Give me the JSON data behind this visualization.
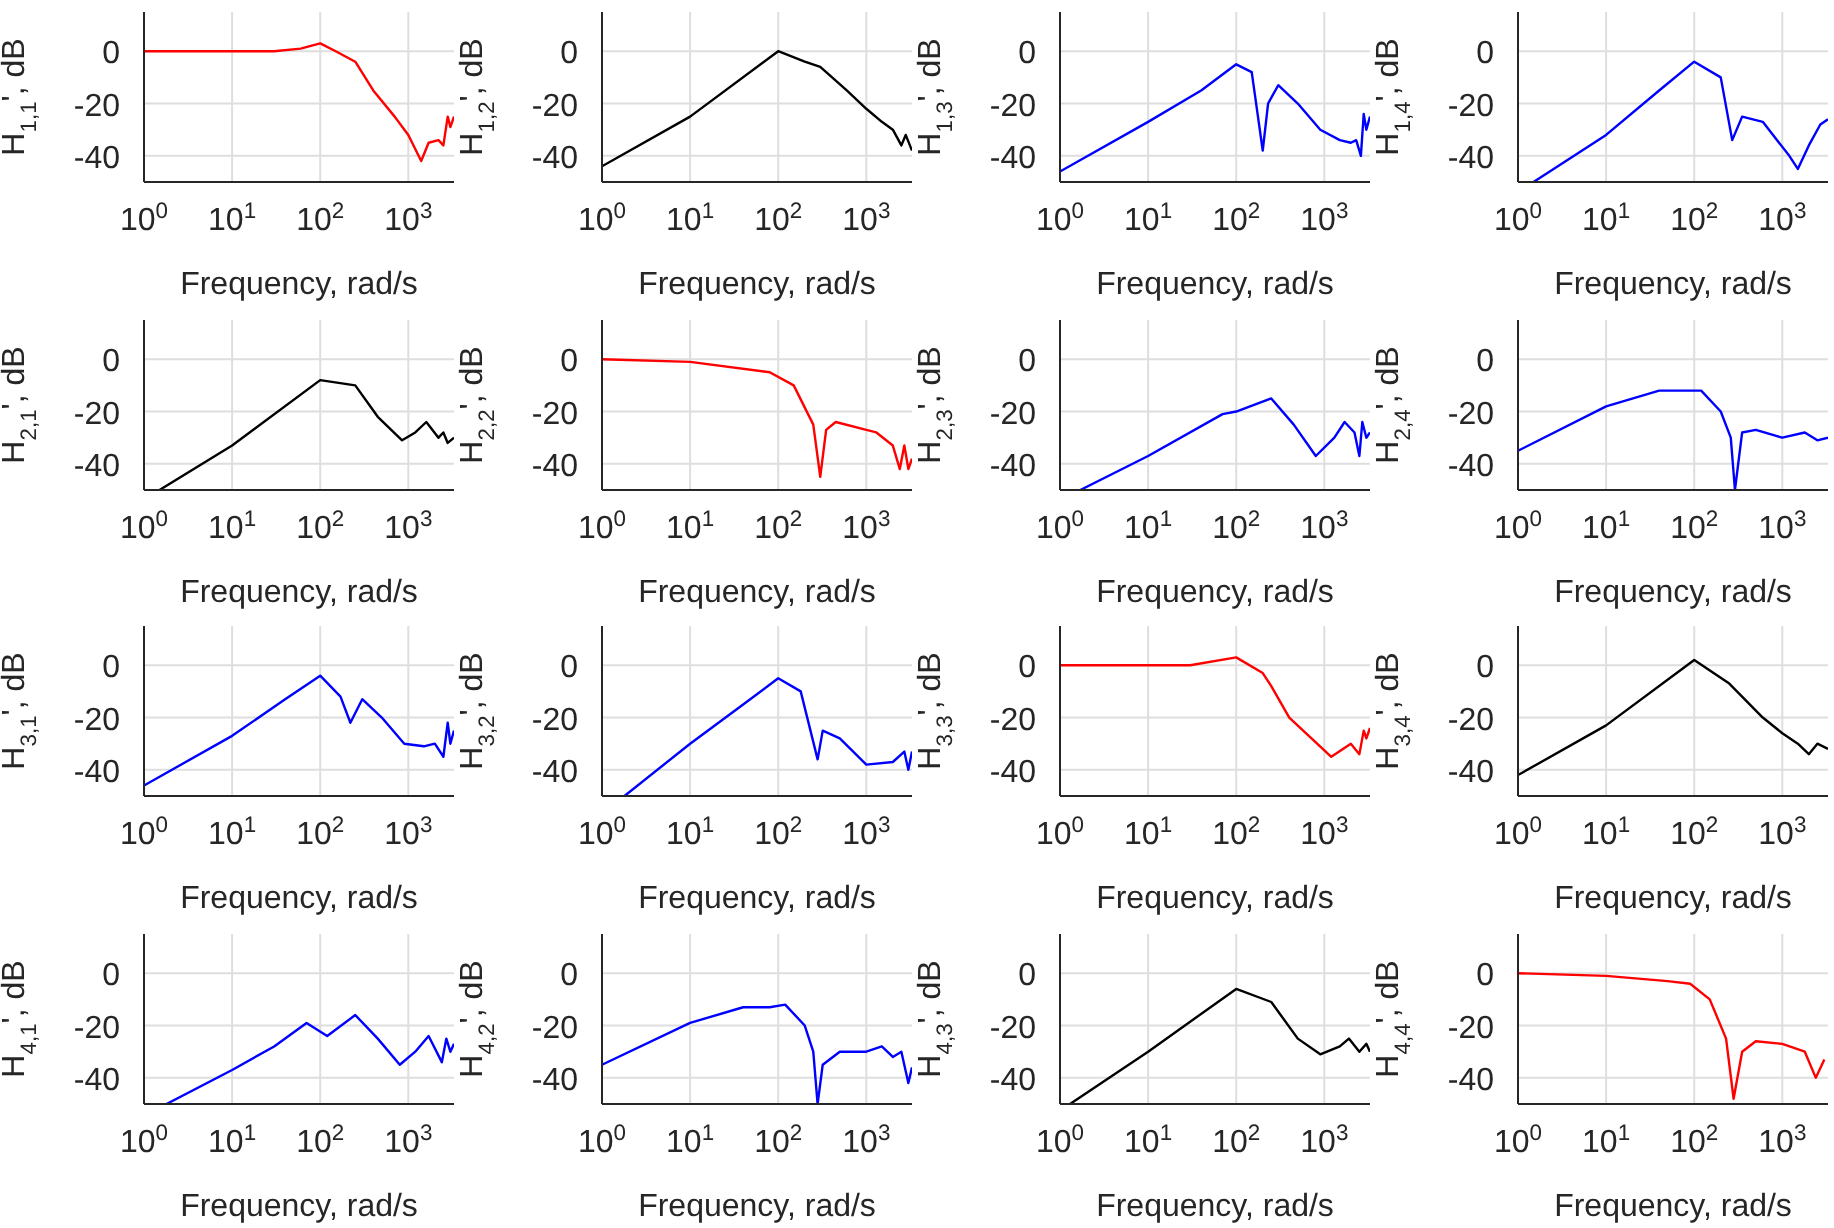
{
  "chart_data": [
    {
      "type": "line",
      "xlabel": "Frequency, rad/s",
      "ylabel": "H$_{1,1}$', dB",
      "log": "x",
      "grid": true,
      "color": "#ff0000",
      "xlim": [
        1,
        3300
      ],
      "ylim": [
        -50,
        15
      ],
      "xticks": [
        {
          "value": 1,
          "label": "10$^{0}$"
        },
        {
          "value": 10,
          "label": "10$^{1}$"
        },
        {
          "value": 100,
          "label": "10$^{2}$"
        },
        {
          "value": 1000,
          "label": "10$^{3}$"
        }
      ],
      "yticks": [
        -40,
        -20,
        0
      ],
      "x": [
        1,
        10,
        30,
        60,
        100,
        150,
        250,
        400,
        700,
        1000,
        1400,
        1700,
        2200,
        2500,
        2800,
        3000,
        3300
      ],
      "values": [
        0,
        0,
        0,
        1,
        3,
        0,
        -4,
        -15,
        -25,
        -32,
        -42,
        -35,
        -34,
        -36,
        -25,
        -29,
        -25
      ]
    },
    {
      "type": "line",
      "xlabel": "Frequency, rad/s",
      "ylabel": "H$_{1,2}$', dB",
      "log": "x",
      "grid": true,
      "color": "#000000",
      "xlim": [
        1,
        3300
      ],
      "ylim": [
        -50,
        15
      ],
      "xticks": [
        {
          "value": 1,
          "label": "10$^{0}$"
        },
        {
          "value": 10,
          "label": "10$^{1}$"
        },
        {
          "value": 100,
          "label": "10$^{2}$"
        },
        {
          "value": 1000,
          "label": "10$^{3}$"
        }
      ],
      "yticks": [
        -40,
        -20,
        0
      ],
      "x": [
        1,
        10,
        100,
        200,
        300,
        600,
        1000,
        1500,
        2000,
        2500,
        2800,
        3300
      ],
      "values": [
        -44,
        -25,
        0,
        -4,
        -6,
        -15,
        -22,
        -27,
        -30,
        -36,
        -32,
        -38
      ]
    },
    {
      "type": "line",
      "xlabel": "Frequency, rad/s",
      "ylabel": "H$_{1,3}$', dB",
      "log": "x",
      "grid": true,
      "color": "#0000ff",
      "xlim": [
        1,
        3300
      ],
      "ylim": [
        -50,
        15
      ],
      "xticks": [
        {
          "value": 1,
          "label": "10$^{0}$"
        },
        {
          "value": 10,
          "label": "10$^{1}$"
        },
        {
          "value": 100,
          "label": "10$^{2}$"
        },
        {
          "value": 1000,
          "label": "10$^{3}$"
        }
      ],
      "yticks": [
        -40,
        -20,
        0
      ],
      "x": [
        1,
        10,
        40,
        100,
        150,
        200,
        230,
        300,
        500,
        900,
        1500,
        2000,
        2300,
        2600,
        2800,
        3000,
        3300
      ],
      "values": [
        -46,
        -27,
        -15,
        -5,
        -8,
        -38,
        -20,
        -13,
        -20,
        -30,
        -34,
        -35,
        -34,
        -40,
        -24,
        -30,
        -25
      ]
    },
    {
      "type": "line",
      "xlabel": "Frequency, rad/s",
      "ylabel": "H$_{1,4}$', dB",
      "log": "x",
      "grid": true,
      "color": "#0000ff",
      "xlim": [
        1,
        3300
      ],
      "ylim": [
        -50,
        15
      ],
      "xticks": [
        {
          "value": 1,
          "label": "10$^{0}$"
        },
        {
          "value": 10,
          "label": "10$^{1}$"
        },
        {
          "value": 100,
          "label": "10$^{2}$"
        },
        {
          "value": 1000,
          "label": "10$^{3}$"
        }
      ],
      "yticks": [
        -40,
        -20,
        0
      ],
      "x": [
        1.5,
        10,
        40,
        100,
        200,
        270,
        350,
        600,
        1200,
        1500,
        2000,
        2700,
        3300
      ],
      "values": [
        -50,
        -32,
        -15,
        -4,
        -10,
        -34,
        -25,
        -27,
        -40,
        -45,
        -36,
        -28,
        -26
      ]
    },
    {
      "type": "line",
      "xlabel": "Frequency, rad/s",
      "ylabel": "H$_{2,1}$', dB",
      "log": "x",
      "grid": true,
      "color": "#000000",
      "xlim": [
        1,
        3300
      ],
      "ylim": [
        -50,
        15
      ],
      "xticks": [
        {
          "value": 1,
          "label": "10$^{0}$"
        },
        {
          "value": 10,
          "label": "10$^{1}$"
        },
        {
          "value": 100,
          "label": "10$^{2}$"
        },
        {
          "value": 1000,
          "label": "10$^{3}$"
        }
      ],
      "yticks": [
        -40,
        -20,
        0
      ],
      "x": [
        1.5,
        10,
        100,
        250,
        450,
        850,
        1200,
        1600,
        2200,
        2500,
        2800,
        3300
      ],
      "values": [
        -50,
        -33,
        -8,
        -10,
        -22,
        -31,
        -28,
        -24,
        -30,
        -28,
        -32,
        -30
      ]
    },
    {
      "type": "line",
      "xlabel": "Frequency, rad/s",
      "ylabel": "H$_{2,2}$', dB",
      "log": "x",
      "grid": true,
      "color": "#ff0000",
      "xlim": [
        1,
        3300
      ],
      "ylim": [
        -50,
        15
      ],
      "xticks": [
        {
          "value": 1,
          "label": "10$^{0}$"
        },
        {
          "value": 10,
          "label": "10$^{1}$"
        },
        {
          "value": 100,
          "label": "10$^{2}$"
        },
        {
          "value": 1000,
          "label": "10$^{3}$"
        }
      ],
      "yticks": [
        -40,
        -20,
        0
      ],
      "x": [
        1,
        10,
        80,
        150,
        250,
        300,
        350,
        450,
        1000,
        1300,
        2000,
        2400,
        2700,
        3000,
        3300
      ],
      "values": [
        0,
        -1,
        -5,
        -10,
        -25,
        -45,
        -27,
        -24,
        -27,
        -28,
        -33,
        -42,
        -33,
        -42,
        -38
      ]
    },
    {
      "type": "line",
      "xlabel": "Frequency, rad/s",
      "ylabel": "H$_{2,3}$', dB",
      "log": "x",
      "grid": true,
      "color": "#0000ff",
      "xlim": [
        1,
        3300
      ],
      "ylim": [
        -50,
        15
      ],
      "xticks": [
        {
          "value": 1,
          "label": "10$^{0}$"
        },
        {
          "value": 10,
          "label": "10$^{1}$"
        },
        {
          "value": 100,
          "label": "10$^{2}$"
        },
        {
          "value": 1000,
          "label": "10$^{3}$"
        }
      ],
      "yticks": [
        -40,
        -20,
        0
      ],
      "x": [
        1.7,
        10,
        70,
        100,
        250,
        450,
        800,
        1300,
        1700,
        2200,
        2500,
        2700,
        3000,
        3300
      ],
      "values": [
        -50,
        -37,
        -21,
        -20,
        -15,
        -25,
        -37,
        -30,
        -24,
        -28,
        -37,
        -24,
        -30,
        -28
      ]
    },
    {
      "type": "line",
      "xlabel": "Frequency, rad/s",
      "ylabel": "H$_{2,4}$', dB",
      "log": "x",
      "grid": true,
      "color": "#0000ff",
      "xlim": [
        1,
        3300
      ],
      "ylim": [
        -50,
        15
      ],
      "xticks": [
        {
          "value": 1,
          "label": "10$^{0}$"
        },
        {
          "value": 10,
          "label": "10$^{1}$"
        },
        {
          "value": 100,
          "label": "10$^{2}$"
        },
        {
          "value": 1000,
          "label": "10$^{3}$"
        }
      ],
      "yticks": [
        -40,
        -20,
        0
      ],
      "x": [
        1,
        10,
        40,
        120,
        200,
        260,
        290,
        350,
        500,
        1000,
        1800,
        2500,
        3300
      ],
      "values": [
        -35,
        -18,
        -12,
        -12,
        -20,
        -30,
        -50,
        -28,
        -27,
        -30,
        -28,
        -31,
        -30
      ]
    },
    {
      "type": "line",
      "xlabel": "Frequency, rad/s",
      "ylabel": "H$_{3,1}$', dB",
      "log": "x",
      "grid": true,
      "color": "#0000ff",
      "xlim": [
        1,
        3300
      ],
      "ylim": [
        -50,
        15
      ],
      "xticks": [
        {
          "value": 1,
          "label": "10$^{0}$"
        },
        {
          "value": 10,
          "label": "10$^{1}$"
        },
        {
          "value": 100,
          "label": "10$^{2}$"
        },
        {
          "value": 1000,
          "label": "10$^{3}$"
        }
      ],
      "yticks": [
        -40,
        -20,
        0
      ],
      "x": [
        1,
        10,
        40,
        100,
        170,
        220,
        300,
        500,
        900,
        1500,
        2000,
        2500,
        2800,
        3000,
        3300
      ],
      "values": [
        -46,
        -27,
        -13,
        -4,
        -12,
        -22,
        -13,
        -20,
        -30,
        -31,
        -30,
        -35,
        -22,
        -30,
        -25
      ]
    },
    {
      "type": "line",
      "xlabel": "Frequency, rad/s",
      "ylabel": "H$_{3,2}$', dB",
      "log": "x",
      "grid": true,
      "color": "#0000ff",
      "xlim": [
        1,
        3300
      ],
      "ylim": [
        -50,
        15
      ],
      "xticks": [
        {
          "value": 1,
          "label": "10$^{0}$"
        },
        {
          "value": 10,
          "label": "10$^{1}$"
        },
        {
          "value": 100,
          "label": "10$^{2}$"
        },
        {
          "value": 1000,
          "label": "10$^{3}$"
        }
      ],
      "yticks": [
        -40,
        -20,
        0
      ],
      "x": [
        1.8,
        10,
        40,
        100,
        180,
        280,
        320,
        500,
        1000,
        2000,
        2700,
        3000,
        3300
      ],
      "values": [
        -50,
        -30,
        -15,
        -5,
        -10,
        -36,
        -25,
        -28,
        -38,
        -37,
        -33,
        -40,
        -33
      ]
    },
    {
      "type": "line",
      "xlabel": "Frequency, rad/s",
      "ylabel": "H$_{3,3}$', dB",
      "log": "x",
      "grid": true,
      "color": "#ff0000",
      "xlim": [
        1,
        3300
      ],
      "ylim": [
        -50,
        15
      ],
      "xticks": [
        {
          "value": 1,
          "label": "10$^{0}$"
        },
        {
          "value": 10,
          "label": "10$^{1}$"
        },
        {
          "value": 100,
          "label": "10$^{2}$"
        },
        {
          "value": 1000,
          "label": "10$^{3}$"
        }
      ],
      "yticks": [
        -40,
        -20,
        0
      ],
      "x": [
        1,
        10,
        30,
        100,
        200,
        250,
        400,
        1200,
        2000,
        2500,
        2800,
        3000,
        3300
      ],
      "values": [
        0,
        0,
        0,
        3,
        -3,
        -8,
        -20,
        -35,
        -30,
        -34,
        -25,
        -28,
        -24
      ]
    },
    {
      "type": "line",
      "xlabel": "Frequency, rad/s",
      "ylabel": "H$_{3,4}$', dB",
      "log": "x",
      "grid": true,
      "color": "#000000",
      "xlim": [
        1,
        3300
      ],
      "ylim": [
        -50,
        15
      ],
      "xticks": [
        {
          "value": 1,
          "label": "10$^{0}$"
        },
        {
          "value": 10,
          "label": "10$^{1}$"
        },
        {
          "value": 100,
          "label": "10$^{2}$"
        },
        {
          "value": 1000,
          "label": "10$^{3}$"
        }
      ],
      "yticks": [
        -40,
        -20,
        0
      ],
      "x": [
        1,
        10,
        100,
        250,
        600,
        1000,
        1500,
        2000,
        2500,
        3300
      ],
      "values": [
        -42,
        -23,
        2,
        -7,
        -20,
        -26,
        -30,
        -34,
        -30,
        -32
      ]
    },
    {
      "type": "line",
      "xlabel": "Frequency, rad/s",
      "ylabel": "H$_{4,1}$', dB",
      "log": "x",
      "grid": true,
      "color": "#0000ff",
      "xlim": [
        1,
        3300
      ],
      "ylim": [
        -50,
        15
      ],
      "xticks": [
        {
          "value": 1,
          "label": "10$^{0}$"
        },
        {
          "value": 10,
          "label": "10$^{1}$"
        },
        {
          "value": 100,
          "label": "10$^{2}$"
        },
        {
          "value": 1000,
          "label": "10$^{3}$"
        }
      ],
      "yticks": [
        -40,
        -20,
        0
      ],
      "x": [
        1.8,
        10,
        30,
        70,
        120,
        250,
        450,
        800,
        1200,
        1700,
        2400,
        2700,
        3000,
        3300
      ],
      "values": [
        -50,
        -37,
        -28,
        -19,
        -24,
        -16,
        -25,
        -35,
        -30,
        -24,
        -34,
        -25,
        -30,
        -27
      ]
    },
    {
      "type": "line",
      "xlabel": "Frequency, rad/s",
      "ylabel": "H$_{4,2}$', dB",
      "log": "x",
      "grid": true,
      "color": "#0000ff",
      "xlim": [
        1,
        3300
      ],
      "ylim": [
        -50,
        15
      ],
      "xticks": [
        {
          "value": 1,
          "label": "10$^{0}$"
        },
        {
          "value": 10,
          "label": "10$^{1}$"
        },
        {
          "value": 100,
          "label": "10$^{2}$"
        },
        {
          "value": 1000,
          "label": "10$^{3}$"
        }
      ],
      "yticks": [
        -40,
        -20,
        0
      ],
      "x": [
        1,
        10,
        40,
        80,
        120,
        200,
        250,
        280,
        320,
        500,
        1000,
        1500,
        2000,
        2500,
        3000,
        3300
      ],
      "values": [
        -35,
        -19,
        -13,
        -13,
        -12,
        -20,
        -30,
        -50,
        -35,
        -30,
        -30,
        -28,
        -32,
        -30,
        -42,
        -36
      ]
    },
    {
      "type": "line",
      "xlabel": "Frequency, rad/s",
      "ylabel": "H$_{4,3}$', dB",
      "log": "x",
      "grid": true,
      "color": "#000000",
      "xlim": [
        1,
        3300
      ],
      "ylim": [
        -50,
        15
      ],
      "xticks": [
        {
          "value": 1,
          "label": "10$^{0}$"
        },
        {
          "value": 10,
          "label": "10$^{1}$"
        },
        {
          "value": 100,
          "label": "10$^{2}$"
        },
        {
          "value": 1000,
          "label": "10$^{3}$"
        }
      ],
      "yticks": [
        -40,
        -20,
        0
      ],
      "x": [
        1.3,
        10,
        100,
        250,
        500,
        900,
        1500,
        1900,
        2500,
        3000,
        3300
      ],
      "values": [
        -50,
        -30,
        -6,
        -11,
        -25,
        -31,
        -28,
        -25,
        -30,
        -27,
        -30
      ]
    },
    {
      "type": "line",
      "xlabel": "Frequency, rad/s",
      "ylabel": "H$_{4,4}$', dB",
      "log": "x",
      "grid": true,
      "color": "#ff0000",
      "xlim": [
        1,
        3300
      ],
      "ylim": [
        -50,
        15
      ],
      "xticks": [
        {
          "value": 1,
          "label": "10$^{0}$"
        },
        {
          "value": 10,
          "label": "10$^{1}$"
        },
        {
          "value": 100,
          "label": "10$^{2}$"
        },
        {
          "value": 1000,
          "label": "10$^{3}$"
        }
      ],
      "yticks": [
        -40,
        -20,
        0
      ],
      "x": [
        1,
        10,
        50,
        90,
        150,
        230,
        280,
        350,
        500,
        1000,
        1800,
        2400,
        3000
      ],
      "values": [
        0,
        -1,
        -3,
        -4,
        -10,
        -25,
        -48,
        -30,
        -26,
        -27,
        -30,
        -40,
        -33
      ]
    }
  ]
}
